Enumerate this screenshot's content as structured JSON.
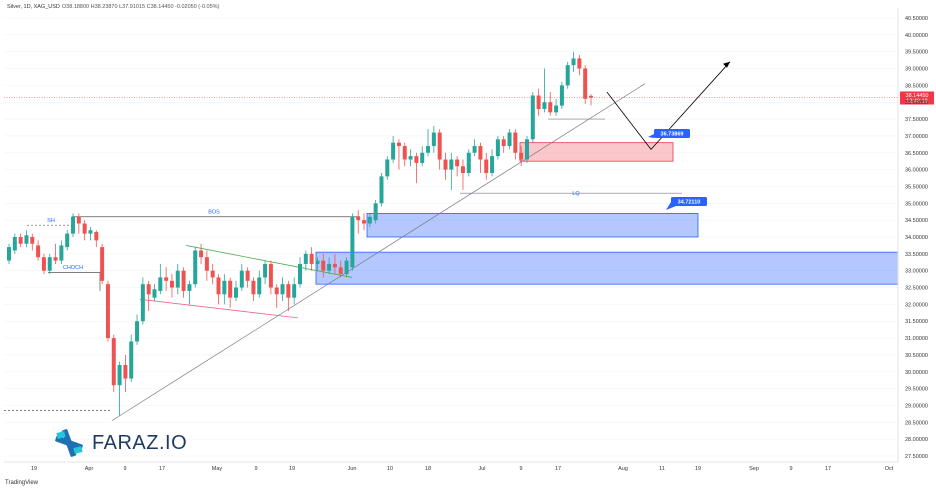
{
  "header": {
    "symbol": "Silver, 1D, XAG_USD",
    "ohlc": "O38.18800 H38.23870 L37.91015 C38.14450 -0.02050 (-0.05%)"
  },
  "price_badge": {
    "price": "38.14450",
    "countdown": "12:49:19",
    "color": "#f23645"
  },
  "annotations": {
    "sh": "SH",
    "choch": "CHOCH",
    "bos": "BOS",
    "lq": "LQ",
    "target_1": "36.73869",
    "target_2": "34.72110"
  },
  "brand": {
    "name": "FARAZ.IO",
    "platform": "TradingView"
  },
  "colors": {
    "up": "#26a69a",
    "down": "#ef5350",
    "blue_zone": "#2962ff",
    "red_zone": "#f23645",
    "label_bg": "#2962ff"
  },
  "chart_data": {
    "type": "candlestick",
    "y_axis_side": "right",
    "ylim": [
      27.2,
      40.7
    ],
    "yticks": [
      "40.50000",
      "40.00000",
      "39.50000",
      "39.00000",
      "38.50000",
      "38.00000",
      "37.50000",
      "37.00000",
      "36.50000",
      "36.00000",
      "35.50000",
      "35.00000",
      "34.50000",
      "34.00000",
      "33.50000",
      "33.00000",
      "32.50000",
      "32.00000",
      "31.50000",
      "31.00000",
      "30.50000",
      "30.00000",
      "29.50000",
      "29.00000",
      "28.50000",
      "28.00000",
      "27.50000"
    ],
    "x_tick_labels": [
      "19",
      "Apr",
      "9",
      "17",
      "May",
      "9",
      "19",
      "Jun",
      "10",
      "18",
      "Jul",
      "9",
      "17",
      "Aug",
      "11",
      "19",
      "Sep",
      "9",
      "17",
      "Oct"
    ],
    "candles": [
      [
        33.3,
        33.7,
        33.8,
        33.2
      ],
      [
        33.6,
        34.0,
        34.1,
        33.5
      ],
      [
        34.0,
        33.8,
        34.1,
        33.7
      ],
      [
        33.8,
        34.05,
        34.2,
        33.7
      ],
      [
        34.0,
        33.8,
        34.1,
        33.6
      ],
      [
        33.75,
        33.4,
        33.9,
        33.3
      ],
      [
        33.4,
        33.0,
        33.5,
        32.9
      ],
      [
        33.0,
        33.4,
        33.5,
        32.9
      ],
      [
        33.4,
        33.3,
        33.8,
        33.2
      ],
      [
        33.3,
        33.75,
        33.9,
        33.2
      ],
      [
        33.7,
        34.1,
        34.2,
        33.6
      ],
      [
        34.1,
        34.6,
        34.7,
        34.0
      ],
      [
        34.6,
        34.4,
        34.7,
        34.1
      ],
      [
        34.4,
        34.1,
        34.5,
        33.9
      ],
      [
        34.1,
        34.2,
        34.3,
        33.9
      ],
      [
        34.15,
        33.9,
        34.2,
        33.7
      ],
      [
        33.7,
        32.7,
        33.8,
        32.6
      ],
      [
        32.6,
        31.0,
        32.7,
        30.9
      ],
      [
        31.0,
        29.6,
        31.1,
        29.4
      ],
      [
        29.6,
        30.2,
        30.3,
        28.7
      ],
      [
        30.2,
        29.8,
        30.5,
        29.4
      ],
      [
        29.8,
        30.9,
        31.1,
        29.7
      ],
      [
        30.9,
        31.5,
        31.7,
        30.8
      ],
      [
        31.5,
        32.6,
        32.8,
        31.4
      ],
      [
        32.6,
        32.3,
        32.7,
        31.8
      ],
      [
        32.2,
        32.45,
        32.6,
        32.1
      ],
      [
        32.4,
        32.8,
        33.2,
        32.3
      ],
      [
        32.8,
        32.7,
        33.1,
        32.4
      ],
      [
        32.7,
        32.5,
        32.9,
        32.2
      ],
      [
        32.5,
        33.0,
        33.2,
        32.3
      ],
      [
        33.0,
        32.4,
        33.1,
        32.2
      ],
      [
        32.4,
        32.6,
        32.7,
        32.0
      ],
      [
        32.6,
        33.6,
        33.7,
        32.5
      ],
      [
        33.6,
        33.4,
        33.8,
        33.2
      ],
      [
        33.4,
        33.0,
        33.6,
        32.7
      ],
      [
        33.0,
        32.8,
        33.2,
        32.6
      ],
      [
        32.8,
        32.3,
        32.9,
        32.0
      ],
      [
        32.3,
        32.7,
        32.9,
        32.0
      ],
      [
        32.7,
        32.2,
        32.8,
        31.9
      ],
      [
        32.2,
        32.5,
        32.7,
        32.1
      ],
      [
        32.5,
        33.0,
        33.2,
        32.4
      ],
      [
        33.0,
        32.7,
        33.1,
        32.5
      ],
      [
        32.7,
        32.3,
        32.8,
        32.1
      ],
      [
        32.3,
        32.8,
        33.0,
        32.2
      ],
      [
        32.8,
        33.2,
        33.3,
        32.6
      ],
      [
        33.2,
        32.5,
        33.3,
        32.3
      ],
      [
        32.5,
        32.3,
        32.6,
        31.9
      ],
      [
        32.3,
        32.6,
        32.8,
        32.1
      ],
      [
        32.6,
        32.2,
        32.7,
        31.8
      ],
      [
        32.2,
        32.6,
        32.8,
        32.0
      ],
      [
        32.6,
        33.2,
        33.4,
        32.5
      ],
      [
        33.2,
        33.5,
        33.6,
        33.0
      ],
      [
        33.5,
        33.2,
        33.7,
        33.0
      ],
      [
        33.2,
        33.3,
        33.4,
        33.0
      ],
      [
        33.3,
        33.0,
        33.5,
        32.8
      ],
      [
        33.0,
        33.2,
        33.4,
        32.9
      ],
      [
        33.2,
        33.1,
        33.5,
        32.9
      ],
      [
        33.1,
        32.9,
        33.3,
        32.8
      ],
      [
        32.9,
        33.3,
        33.4,
        32.8
      ],
      [
        33.1,
        34.6,
        34.7,
        33.0
      ],
      [
        34.6,
        34.5,
        34.8,
        34.1
      ],
      [
        34.5,
        34.4,
        34.7,
        34.2
      ],
      [
        34.4,
        34.6,
        34.7,
        34.3
      ],
      [
        34.5,
        35.0,
        35.1,
        34.4
      ],
      [
        35.0,
        35.8,
        35.9,
        34.9
      ],
      [
        35.8,
        36.3,
        36.4,
        35.7
      ],
      [
        36.3,
        36.8,
        37.0,
        36.2
      ],
      [
        36.8,
        36.7,
        36.9,
        36.0
      ],
      [
        36.7,
        36.3,
        36.8,
        36.1
      ],
      [
        36.3,
        36.4,
        36.6,
        36.1
      ],
      [
        36.4,
        36.2,
        36.5,
        35.6
      ],
      [
        36.2,
        36.5,
        36.7,
        36.1
      ],
      [
        36.5,
        36.7,
        37.2,
        36.4
      ],
      [
        36.7,
        37.1,
        37.3,
        36.5
      ],
      [
        37.1,
        36.3,
        37.2,
        36.0
      ],
      [
        36.3,
        36.0,
        36.5,
        35.7
      ],
      [
        36.0,
        36.3,
        36.5,
        35.4
      ],
      [
        36.3,
        36.1,
        36.4,
        35.8
      ],
      [
        36.1,
        35.9,
        36.3,
        35.4
      ],
      [
        35.9,
        36.5,
        36.6,
        35.8
      ],
      [
        36.5,
        36.7,
        36.9,
        36.4
      ],
      [
        36.7,
        36.3,
        36.8,
        35.9
      ],
      [
        36.3,
        35.9,
        36.5,
        35.7
      ],
      [
        35.9,
        36.4,
        36.6,
        35.8
      ],
      [
        36.4,
        36.9,
        37.0,
        36.3
      ],
      [
        36.9,
        36.7,
        37.0,
        36.5
      ],
      [
        36.7,
        37.1,
        37.2,
        36.6
      ],
      [
        37.1,
        36.5,
        37.2,
        36.3
      ],
      [
        36.5,
        36.3,
        36.7,
        36.1
      ],
      [
        36.3,
        36.9,
        37.0,
        36.2
      ],
      [
        36.9,
        38.2,
        38.3,
        36.8
      ],
      [
        38.2,
        37.8,
        38.4,
        37.6
      ],
      [
        37.8,
        38.0,
        39.0,
        37.7
      ],
      [
        38.0,
        37.7,
        38.3,
        37.6
      ],
      [
        37.7,
        37.9,
        38.1,
        37.6
      ],
      [
        37.9,
        38.5,
        38.6,
        37.8
      ],
      [
        38.5,
        39.1,
        39.2,
        38.4
      ],
      [
        39.1,
        39.3,
        39.5,
        38.9
      ],
      [
        39.3,
        39.0,
        39.4,
        38.8
      ],
      [
        39.0,
        38.1,
        39.1,
        37.95
      ],
      [
        38.19,
        38.14,
        38.24,
        37.91
      ]
    ],
    "blue_zones": [
      {
        "from_bar": 73,
        "to_bar": 106,
        "top": 34.7,
        "bottom": 34.0
      },
      {
        "from_bar": 62,
        "to_bar": 134,
        "top": 33.55,
        "bottom": 32.6
      }
    ],
    "red_zone": {
      "from_bar": 100,
      "to_bar": 132,
      "top": 36.8,
      "bottom": 36.25
    },
    "projection": [
      {
        "bar": 117,
        "price": 38.3
      },
      {
        "bar": 125,
        "price": 36.6
      },
      {
        "bar": 141,
        "price": 39.2
      }
    ]
  }
}
